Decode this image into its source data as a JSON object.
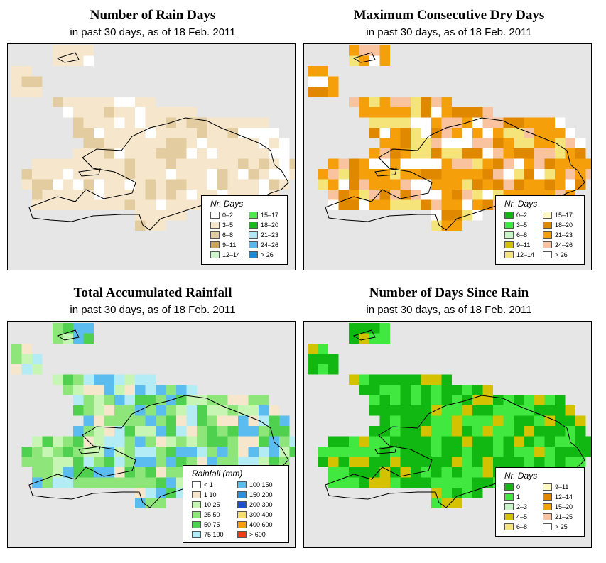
{
  "panels": [
    {
      "id": "rain-days",
      "title": "Number of Rain Days",
      "subtitle": "in past 30 days, as of  18 Feb. 2011",
      "legend": {
        "title": "Nr. Days",
        "items": [
          {
            "label": "0–2",
            "color": "#ffffff"
          },
          {
            "label": "3–5",
            "color": "#f5e6cc"
          },
          {
            "label": "6–8",
            "color": "#e3cc9f"
          },
          {
            "label": "9–11",
            "color": "#cda55a"
          },
          {
            "label": "12–14",
            "color": "#ccf5cc"
          },
          {
            "label": "15–17",
            "color": "#4de84d"
          },
          {
            "label": "18–20",
            "color": "#1bb81b"
          },
          {
            "label": "21–23",
            "color": "#b0e8f5"
          },
          {
            "label": "24–26",
            "color": "#5bb8ef"
          },
          {
            "label": "> 26",
            "color": "#1a8ad6"
          }
        ]
      }
    },
    {
      "id": "max-dry-days",
      "title": "Maximum Consecutive Dry Days",
      "subtitle": "in past 30 days, as of  18 Feb. 2011",
      "legend": {
        "title": "Nr. Days",
        "items": [
          {
            "label": "0–2",
            "color": "#11b811"
          },
          {
            "label": "3–5",
            "color": "#40e840"
          },
          {
            "label": "6–8",
            "color": "#c7f5c7"
          },
          {
            "label": "9–11",
            "color": "#d4c200"
          },
          {
            "label": "12–14",
            "color": "#f5e47a"
          },
          {
            "label": "15–17",
            "color": "#fff8c4"
          },
          {
            "label": "18–20",
            "color": "#e08800"
          },
          {
            "label": "21–23",
            "color": "#f5a00a"
          },
          {
            "label": "24–26",
            "color": "#f9c3a0"
          },
          {
            "label": "> 26",
            "color": "#ffffff"
          }
        ]
      }
    },
    {
      "id": "total-rainfall",
      "title": "Total Accumulated Rainfall",
      "subtitle": "in past 30 days, as of  18 Feb. 2011",
      "legend": {
        "title": "Rainfall (mm)",
        "items": [
          {
            "label": "< 1",
            "color": "#ffffff"
          },
          {
            "label": "1    10",
            "color": "#f5e6cc"
          },
          {
            "label": "10    25",
            "color": "#c7f5b4"
          },
          {
            "label": "25    50",
            "color": "#8ee67a"
          },
          {
            "label": "50    75",
            "color": "#4fd14f"
          },
          {
            "label": "75   100",
            "color": "#b4ecf5"
          },
          {
            "label": "100   150",
            "color": "#5bbcf0"
          },
          {
            "label": "150   200",
            "color": "#2d8fe0"
          },
          {
            "label": "200   300",
            "color": "#1a4fd0"
          },
          {
            "label": "300   400",
            "color": "#f7df6e"
          },
          {
            "label": "400   600",
            "color": "#f5a00a"
          },
          {
            "label": "> 600",
            "color": "#f03c14"
          }
        ]
      }
    },
    {
      "id": "days-since-rain",
      "title": "Number of Days Since Rain",
      "subtitle": "in past 30 days, as of  18 Feb. 2011",
      "legend": {
        "title": "Nr. Days",
        "items": [
          {
            "label": "0",
            "color": "#11b811"
          },
          {
            "label": "1",
            "color": "#40e840"
          },
          {
            "label": "2–3",
            "color": "#c7f5c7"
          },
          {
            "label": "4–5",
            "color": "#d4c200"
          },
          {
            "label": "6–8",
            "color": "#f5e47a"
          },
          {
            "label": "9–11",
            "color": "#fff8c4"
          },
          {
            "label": "12–14",
            "color": "#e08800"
          },
          {
            "label": "15–20",
            "color": "#f5a00a"
          },
          {
            "label": "21–25",
            "color": "#f9c3a0"
          },
          {
            "label": "> 25",
            "color": "#ffffff"
          }
        ]
      }
    }
  ]
}
